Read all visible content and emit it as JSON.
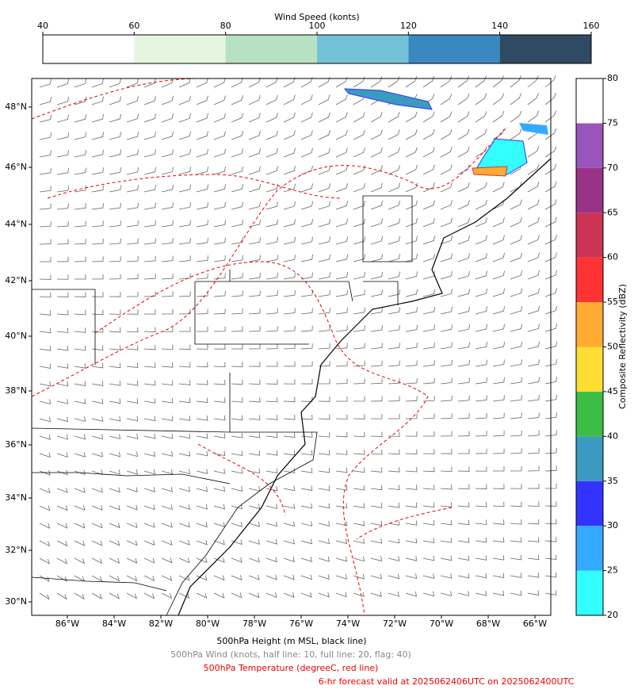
{
  "wind_colorbar": {
    "title": "Wind Speed (konts)",
    "ticks": [
      40,
      60,
      80,
      100,
      120,
      140,
      160
    ],
    "colors": [
      "#ffffff",
      "#e5f5e0",
      "#b7e2c1",
      "#74c2d8",
      "#3a88c0",
      "#2f4a62"
    ]
  },
  "reflectivity_colorbar": {
    "label": "Composite Reflectivity (dBZ)",
    "ticks": [
      20,
      25,
      30,
      35,
      40,
      45,
      50,
      55,
      60,
      65,
      70,
      75,
      80
    ],
    "colors": [
      "#33ffff",
      "#33aaff",
      "#3333ff",
      "#3a9ac0",
      "#3cbe46",
      "#ffdd33",
      "#ffaa33",
      "#ff3333",
      "#cc3355",
      "#993388",
      "#9955bb",
      "#ffffff"
    ]
  },
  "map": {
    "lon_labels": [
      "86°W",
      "84°W",
      "82°W",
      "80°W",
      "78°W",
      "76°W",
      "74°W",
      "72°W",
      "70°W",
      "68°W",
      "66°W"
    ],
    "lat_labels": [
      "48°N",
      "46°N",
      "44°N",
      "42°N",
      "40°N",
      "38°N",
      "36°N",
      "34°N",
      "32°N",
      "30°N"
    ]
  },
  "captions": [
    "500hPa Height (m MSL, black line)",
    "500hPa Wind (knots, half line: 10, full line: 20, flag: 40)",
    "500hPa Temperature (degreeC, red line)",
    "6-hr forecast valid at 2025062406UTC on 2025062400UTC"
  ]
}
